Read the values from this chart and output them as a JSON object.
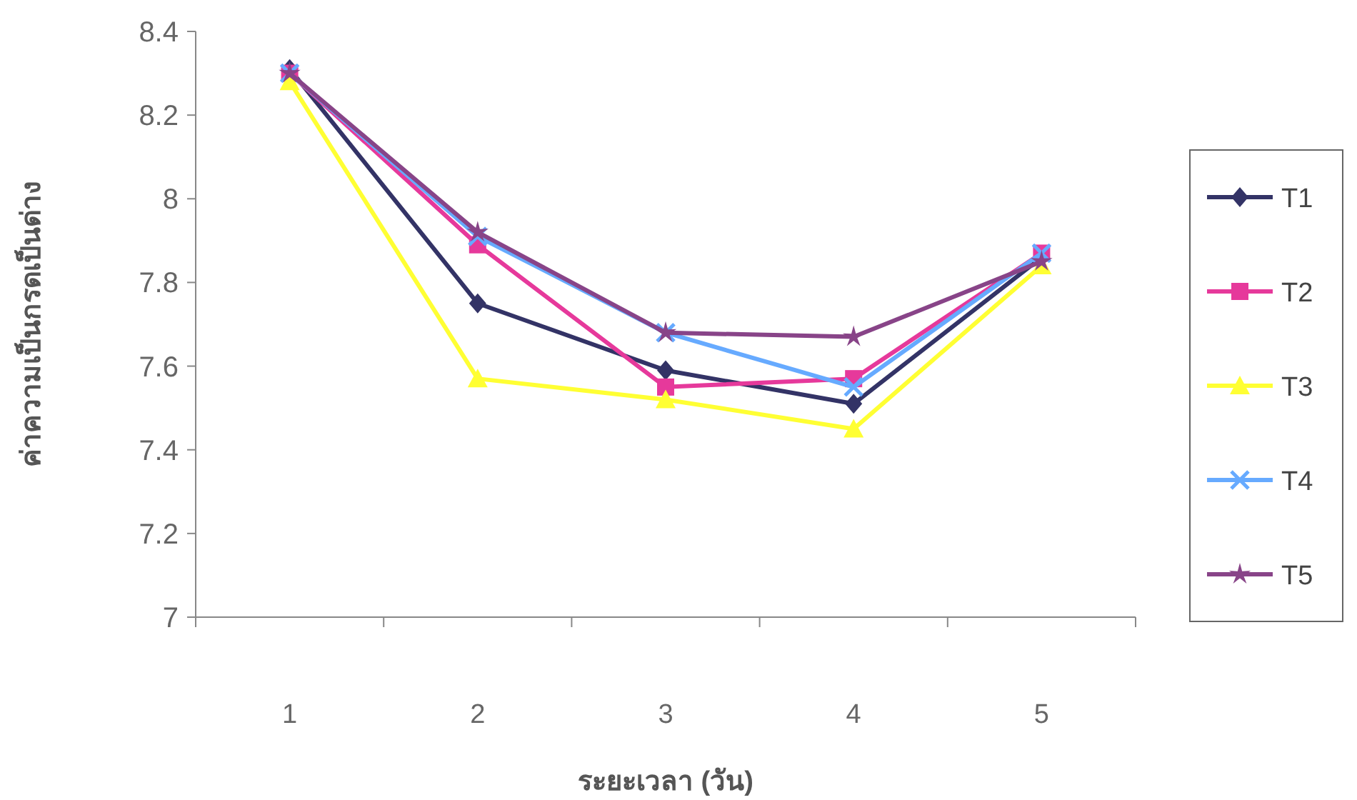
{
  "chart_data": {
    "type": "line",
    "xlabel": "ระยะเวลา (วัน)",
    "ylabel": "ค่าความเป็นกรดเป็นด่าง",
    "categories": [
      "1",
      "2",
      "3",
      "4",
      "5"
    ],
    "series": [
      {
        "name": "T1",
        "color": "#333366",
        "marker": "diamond",
        "values": [
          8.31,
          7.75,
          7.59,
          7.51,
          7.86
        ]
      },
      {
        "name": "T2",
        "color": "#e6399b",
        "marker": "square",
        "values": [
          8.3,
          7.89,
          7.55,
          7.57,
          7.87
        ]
      },
      {
        "name": "T3",
        "color": "#ffff33",
        "marker": "triangle",
        "values": [
          8.28,
          7.57,
          7.52,
          7.45,
          7.84
        ]
      },
      {
        "name": "T4",
        "color": "#66aaff",
        "marker": "cross",
        "values": [
          8.3,
          7.91,
          7.68,
          7.55,
          7.87
        ]
      },
      {
        "name": "T5",
        "color": "#884488",
        "marker": "star",
        "values": [
          8.3,
          7.92,
          7.68,
          7.67,
          7.85
        ]
      }
    ],
    "ylim": [
      7,
      8.4
    ],
    "yticks": [
      7,
      7.2,
      7.4,
      7.6,
      7.8,
      8,
      8.2,
      8.4
    ],
    "grid": false,
    "legend": "right"
  }
}
